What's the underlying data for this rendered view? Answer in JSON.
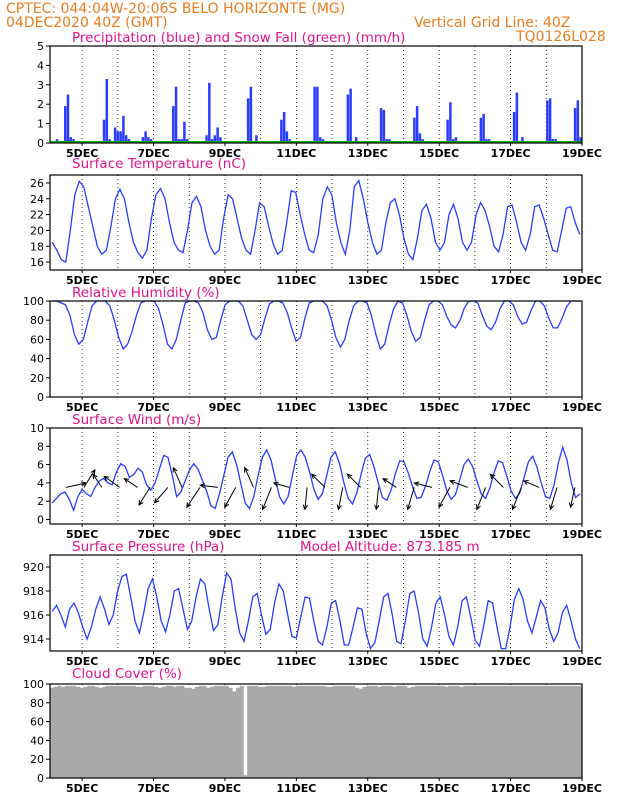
{
  "header": {
    "line1": "CPTEC:  044:04W-20:06S  BELO HORIZONTE (MG)",
    "line2": "04DEC2020 40Z (GMT)",
    "grid_note": "Vertical Grid Line: 40Z",
    "model_code": "TQ0126L028"
  },
  "colors": {
    "header": "#e87c1e",
    "title": "#e0148c",
    "line": "#2a3cff",
    "bar": "#2a3cff",
    "snow": "#00aa00",
    "cloud": "#a9a9a9",
    "grid": "#000000"
  },
  "x_labels": [
    "5DEC",
    "7DEC",
    "9DEC",
    "11DEC",
    "13DEC",
    "15DEC",
    "17DEC",
    "19DEC"
  ],
  "chart_data": [
    {
      "id": "precip",
      "type": "bar",
      "title": "Precipitation (blue) and Snow Fall (green) (mm/h)",
      "ylim": [
        0,
        5
      ],
      "yticks": [
        "0",
        "1",
        "2",
        "3",
        "4",
        "5"
      ],
      "x_range_days": [
        4.1,
        19.0
      ],
      "series": [
        {
          "name": "Precipitation",
          "values": [
            0.05,
            0.1,
            0.2,
            0.1,
            0,
            1.9,
            2.5,
            0.3,
            0.2,
            0,
            0,
            0,
            0,
            0,
            0,
            0,
            0,
            0,
            0,
            1.2,
            3.3,
            0.2,
            0.1,
            0.8,
            0.6,
            0.6,
            1.4,
            0.4,
            0.2,
            0,
            0,
            0,
            0,
            0.3,
            0.6,
            0.3,
            0.2,
            0,
            0,
            0,
            0,
            0,
            0,
            0,
            1.9,
            2.9,
            0.2,
            0.2,
            1.1,
            0.2,
            0,
            0,
            0,
            0,
            0,
            0,
            0.4,
            3.1,
            0.2,
            0.4,
            0.8,
            0.3,
            0,
            0,
            0,
            0,
            0,
            0,
            0,
            0,
            0,
            2.3,
            2.9,
            0.1,
            0.4,
            0.1,
            0,
            0,
            0,
            0,
            0,
            0,
            0,
            1.2,
            1.6,
            0.6,
            0.2,
            0.1,
            0,
            0,
            0,
            0,
            0,
            0,
            0,
            2.9,
            2.9,
            0.3,
            0.2,
            0,
            0,
            0,
            0,
            0,
            0,
            0,
            0,
            2.5,
            2.8,
            0.1,
            0.3,
            0,
            0,
            0,
            0,
            0,
            0,
            0,
            0,
            1.8,
            1.7,
            0.2,
            0.2,
            0,
            0,
            0,
            0,
            0,
            0,
            0,
            0,
            1.3,
            1.9,
            0.5,
            0.2,
            0,
            0,
            0,
            0,
            0,
            0,
            0,
            0,
            1.2,
            2.1,
            0.2,
            0.3,
            0,
            0,
            0,
            0,
            0,
            0,
            0,
            0,
            1.3,
            1.5,
            0.2,
            0.2,
            0,
            0,
            0,
            0,
            0,
            0,
            0,
            0,
            1.6,
            2.6,
            0.1,
            0.3,
            0,
            0,
            0,
            0,
            0,
            0,
            0,
            0,
            2.2,
            2.3,
            0.2,
            0.2,
            0,
            0,
            0,
            0,
            0,
            0,
            1.8,
            2.2,
            0.3
          ]
        },
        {
          "name": "Snow Fall",
          "values": [
            0
          ]
        }
      ]
    },
    {
      "id": "temp",
      "type": "line",
      "title": "Surface Temperature (nC)",
      "ylim": [
        15,
        27
      ],
      "yticks": [
        "16",
        "18",
        "20",
        "22",
        "24",
        "26"
      ],
      "x_range_days": [
        4.1,
        19.0
      ],
      "values": [
        18.5,
        17.5,
        16.3,
        16.0,
        20.0,
        24.5,
        26.2,
        25.5,
        23.0,
        20.5,
        18.0,
        17.0,
        17.5,
        20.5,
        24.0,
        25.2,
        24.0,
        21.0,
        18.5,
        17.2,
        16.5,
        17.5,
        21.5,
        24.5,
        25.3,
        24.0,
        21.0,
        18.5,
        17.5,
        17.2,
        20.0,
        23.5,
        24.3,
        23.0,
        20.0,
        18.0,
        17.0,
        17.5,
        21.5,
        24.5,
        24.0,
        21.5,
        19.0,
        17.5,
        17.0,
        20.0,
        23.5,
        23.0,
        20.5,
        18.3,
        17.0,
        17.5,
        21.0,
        25.0,
        24.8,
        22.0,
        19.5,
        17.5,
        17.2,
        19.5,
        24.0,
        25.5,
        24.5,
        21.0,
        18.5,
        17.0,
        20.0,
        25.5,
        26.3,
        24.0,
        21.0,
        18.5,
        17.0,
        17.5,
        21.0,
        23.5,
        24.0,
        22.0,
        19.0,
        17.0,
        16.3,
        19.0,
        22.5,
        23.3,
        21.5,
        18.5,
        17.5,
        18.5,
        22.0,
        23.3,
        21.5,
        18.5,
        17.5,
        18.5,
        22.0,
        23.5,
        22.5,
        20.5,
        18.0,
        17.3,
        19.5,
        23.0,
        23.2,
        21.0,
        18.5,
        17.5,
        19.5,
        23.0,
        23.2,
        21.5,
        19.5,
        17.5,
        17.3,
        20.0,
        22.8,
        23.0,
        21.0,
        19.5
      ]
    },
    {
      "id": "rh",
      "type": "line",
      "title": "Relative Humidity (%)",
      "ylim": [
        0,
        100
      ],
      "yticks": [
        "0",
        "20",
        "40",
        "60",
        "80",
        "100"
      ],
      "x_range_days": [
        4.1,
        19.0
      ],
      "values": [
        100,
        100,
        98,
        96,
        85,
        65,
        55,
        60,
        78,
        95,
        100,
        100,
        100,
        95,
        80,
        62,
        50,
        55,
        68,
        85,
        98,
        100,
        100,
        100,
        92,
        75,
        55,
        50,
        60,
        80,
        98,
        100,
        100,
        98,
        88,
        70,
        60,
        62,
        80,
        96,
        100,
        100,
        100,
        95,
        80,
        65,
        60,
        65,
        82,
        97,
        100,
        100,
        98,
        88,
        72,
        58,
        62,
        82,
        98,
        100,
        100,
        100,
        95,
        80,
        62,
        52,
        60,
        80,
        95,
        100,
        100,
        98,
        85,
        65,
        50,
        55,
        75,
        92,
        100,
        98,
        85,
        68,
        58,
        62,
        80,
        96,
        100,
        100,
        96,
        84,
        75,
        72,
        80,
        93,
        100,
        100,
        98,
        85,
        74,
        70,
        78,
        92,
        100,
        100,
        96,
        84,
        76,
        78,
        90,
        100,
        100,
        95,
        82,
        72,
        72,
        82,
        94,
        100,
        100,
        100
      ]
    },
    {
      "id": "wind",
      "type": "line",
      "title": "Surface Wind (m/s)",
      "ylim": [
        -0.5,
        10
      ],
      "yticks": [
        "0",
        "2",
        "4",
        "6",
        "8",
        "10"
      ],
      "x_range_days": [
        4.1,
        19.0
      ],
      "values": [
        1.8,
        2.3,
        2.8,
        3.0,
        2.2,
        1.0,
        2.5,
        3.3,
        2.8,
        2.5,
        3.5,
        4.2,
        4.5,
        4.0,
        3.8,
        5.2,
        6.1,
        5.8,
        4.6,
        4.9,
        5.6,
        5.2,
        3.8,
        3.2,
        4.0,
        5.5,
        7.0,
        6.8,
        4.8,
        2.5,
        3.0,
        4.2,
        5.4,
        6.1,
        5.5,
        4.3,
        3.1,
        1.5,
        1.2,
        2.8,
        4.8,
        6.8,
        7.4,
        6.0,
        3.9,
        1.8,
        1.2,
        2.5,
        4.8,
        6.8,
        7.6,
        6.5,
        4.5,
        2.5,
        1.7,
        2.5,
        4.8,
        7.0,
        7.6,
        6.8,
        5.2,
        3.3,
        2.2,
        2.8,
        4.8,
        6.8,
        7.4,
        6.1,
        4.0,
        2.3,
        1.7,
        2.9,
        4.9,
        6.7,
        7.1,
        5.8,
        4.0,
        2.4,
        2.1,
        3.2,
        5.0,
        6.4,
        6.3,
        5.1,
        3.6,
        2.3,
        2.4,
        3.6,
        5.2,
        6.5,
        6.3,
        4.8,
        3.1,
        2.2,
        2.7,
        4.3,
        6.0,
        6.6,
        5.8,
        4.2,
        2.8,
        2.3,
        3.4,
        5.1,
        6.4,
        6.2,
        4.7,
        3.1,
        2.3,
        2.9,
        4.6,
        6.3,
        6.9,
        5.7,
        4.0,
        2.5,
        2.3,
        3.8,
        6.2,
        7.9,
        6.5,
        4.0,
        2.4,
        2.8
      ]
    },
    {
      "id": "pressure",
      "type": "line",
      "title": "Surface Pressure (hPa)",
      "subtitle": "Model Altitude: 873.185 m",
      "ylim": [
        913,
        921
      ],
      "yticks": [
        "914",
        "916",
        "918",
        "920"
      ],
      "x_range_days": [
        4.1,
        19.0
      ],
      "values": [
        916.3,
        916.8,
        916.0,
        915.0,
        916.5,
        917.0,
        916.2,
        915.0,
        914.0,
        915.0,
        916.5,
        917.5,
        916.5,
        915.2,
        916.0,
        918.0,
        919.2,
        919.4,
        917.5,
        915.5,
        914.5,
        916.2,
        918.2,
        919.0,
        917.5,
        915.5,
        914.6,
        916.0,
        918.0,
        918.2,
        916.5,
        914.8,
        915.5,
        917.5,
        919.0,
        918.6,
        916.5,
        914.7,
        915.2,
        917.5,
        919.5,
        919.0,
        916.5,
        914.5,
        913.8,
        915.5,
        917.5,
        917.8,
        916.0,
        914.4,
        914.8,
        917.0,
        918.6,
        918.0,
        916.0,
        914.2,
        914.1,
        915.8,
        917.5,
        917.4,
        915.5,
        913.8,
        913.5,
        915.0,
        917.0,
        917.2,
        915.5,
        913.5,
        913.5,
        915.0,
        916.6,
        916.5,
        914.5,
        913.2,
        913.7,
        915.5,
        917.5,
        917.8,
        916.0,
        913.8,
        913.6,
        915.5,
        917.8,
        918.0,
        916.2,
        914.0,
        913.4,
        915.0,
        917.0,
        917.5,
        916.0,
        914.2,
        913.5,
        915.0,
        917.2,
        917.5,
        915.8,
        913.9,
        913.4,
        915.2,
        917.2,
        917.0,
        915.0,
        913.2,
        913.2,
        915.0,
        917.3,
        918.2,
        917.3,
        915.5,
        914.5,
        915.8,
        917.2,
        916.6,
        914.8,
        913.8,
        914.5,
        916.2,
        916.8,
        915.5,
        914.0,
        913.2
      ]
    },
    {
      "id": "cloud",
      "type": "area",
      "title": "Cloud Cover (%)",
      "ylim": [
        0,
        100
      ],
      "yticks": [
        "0",
        "20",
        "40",
        "60",
        "80",
        "100"
      ],
      "x_range_days": [
        4.1,
        19.0
      ],
      "values": [
        96,
        97,
        98,
        97,
        98,
        98,
        98,
        97,
        96,
        97,
        98,
        98,
        97,
        96,
        97,
        98,
        98,
        98,
        98,
        98,
        98,
        98,
        98,
        97,
        97,
        98,
        98,
        98,
        97,
        96,
        97,
        98,
        98,
        97,
        98,
        98,
        96,
        96,
        95,
        97,
        98,
        98,
        96,
        97,
        98,
        98,
        98,
        98,
        96,
        92,
        96,
        98,
        3,
        98,
        98,
        98,
        97,
        97,
        98,
        98,
        98,
        98,
        98,
        98,
        98,
        97,
        98,
        98,
        98,
        98,
        98,
        98,
        98,
        98,
        97,
        97,
        98,
        98,
        98,
        98,
        98,
        98,
        96,
        95,
        97,
        98,
        98,
        98,
        97,
        98,
        98,
        98,
        97,
        98,
        98,
        98,
        96,
        97,
        98,
        98,
        98,
        98,
        98,
        98,
        98,
        98,
        97,
        98,
        98,
        98,
        97,
        98,
        98,
        98,
        98,
        98,
        98,
        98,
        98,
        98,
        98,
        98,
        98,
        98,
        98,
        98,
        98,
        98,
        98,
        98,
        98,
        98,
        98,
        98,
        98,
        98,
        98,
        98,
        98,
        98,
        98,
        98,
        98
      ]
    }
  ],
  "wind_arrows": [
    {
      "day": 4.55,
      "u": 0.9,
      "v": 0.2
    },
    {
      "day": 5.05,
      "u": 0.5,
      "v": 0.8
    },
    {
      "day": 5.55,
      "u": -0.4,
      "v": 0.6
    },
    {
      "day": 6.05,
      "u": -0.7,
      "v": 0.5
    },
    {
      "day": 6.55,
      "u": -0.6,
      "v": 0.4
    },
    {
      "day": 6.9,
      "u": -0.5,
      "v": -0.8
    },
    {
      "day": 7.4,
      "u": -0.6,
      "v": -0.7
    },
    {
      "day": 7.8,
      "u": -0.4,
      "v": 0.9
    },
    {
      "day": 8.3,
      "u": -0.6,
      "v": -0.9
    },
    {
      "day": 8.8,
      "u": -0.8,
      "v": 0.1
    },
    {
      "day": 9.3,
      "u": -0.5,
      "v": -0.9
    },
    {
      "day": 9.8,
      "u": -0.4,
      "v": 0.9
    },
    {
      "day": 10.3,
      "u": -0.4,
      "v": -1.0
    },
    {
      "day": 10.8,
      "u": -0.7,
      "v": 0.2
    },
    {
      "day": 11.3,
      "u": -0.1,
      "v": -1.0
    },
    {
      "day": 11.8,
      "u": -0.6,
      "v": 0.6
    },
    {
      "day": 12.3,
      "u": -0.2,
      "v": -1.0
    },
    {
      "day": 12.8,
      "u": -0.6,
      "v": 0.6
    },
    {
      "day": 13.3,
      "u": -0.1,
      "v": -1.0
    },
    {
      "day": 13.8,
      "u": -0.6,
      "v": 0.4
    },
    {
      "day": 14.3,
      "u": -0.3,
      "v": -1.0
    },
    {
      "day": 14.8,
      "u": -0.8,
      "v": 0.2
    },
    {
      "day": 15.3,
      "u": -0.5,
      "v": -0.9
    },
    {
      "day": 15.8,
      "u": -0.8,
      "v": 0.3
    },
    {
      "day": 16.3,
      "u": -0.4,
      "v": -1.0
    },
    {
      "day": 16.8,
      "u": -0.6,
      "v": 0.6
    },
    {
      "day": 17.3,
      "u": -0.4,
      "v": -1.0
    },
    {
      "day": 17.8,
      "u": -0.7,
      "v": 0.3
    },
    {
      "day": 18.3,
      "u": -0.3,
      "v": -1.0
    },
    {
      "day": 18.8,
      "u": -0.2,
      "v": -0.9
    }
  ]
}
